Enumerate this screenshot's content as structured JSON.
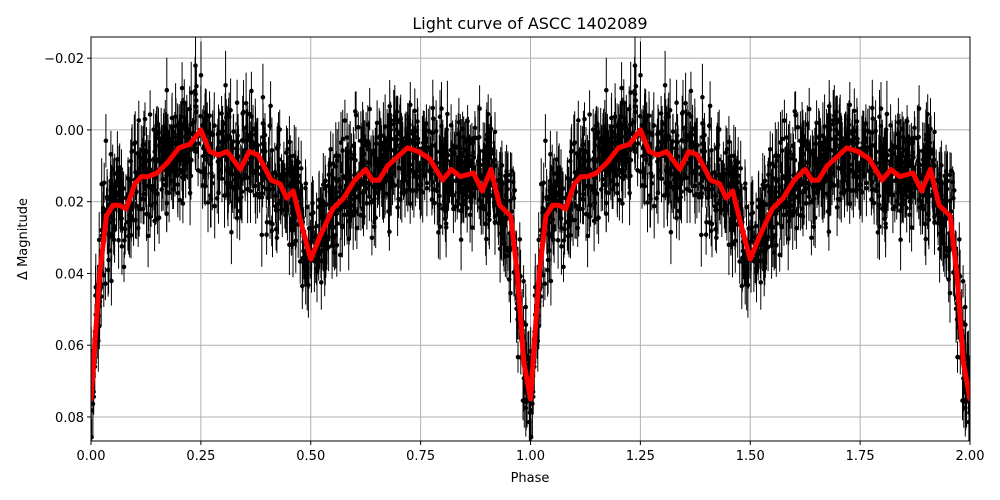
{
  "chart_data": {
    "type": "scatter",
    "title": "Light curve of ASCC 1402089",
    "xlabel": "Phase",
    "ylabel": "Δ Magnitude",
    "xlim": [
      0.0,
      2.0
    ],
    "ylim": [
      0.0867,
      -0.0259
    ],
    "y_inverted": true,
    "grid": true,
    "legend": null,
    "xticks": [
      "0.00",
      "0.25",
      "0.50",
      "0.75",
      "1.00",
      "1.25",
      "1.50",
      "1.75",
      "2.00"
    ],
    "xtick_values": [
      0.0,
      0.25,
      0.5,
      0.75,
      1.0,
      1.25,
      1.5,
      1.75,
      2.0
    ],
    "yticks": [
      "−0.02",
      "0.00",
      "0.02",
      "0.04",
      "0.06",
      "0.08"
    ],
    "ytick_values": [
      -0.02,
      0.0,
      0.02,
      0.04,
      0.06,
      0.08
    ],
    "period_repeated": true,
    "series": [
      {
        "name": "observations",
        "kind": "errorbar-scatter",
        "color": "#000000",
        "description": "Dense black points with vertical error bars, scatter of ~0.01-0.03 mag around the model",
        "typical_error": 0.006,
        "scatter_sigma": 0.011
      },
      {
        "name": "model",
        "kind": "line",
        "color": "#ff0000",
        "line_width": 5,
        "x": [
          0.0,
          0.02,
          0.035,
          0.05,
          0.065,
          0.08,
          0.1,
          0.115,
          0.13,
          0.15,
          0.175,
          0.2,
          0.225,
          0.25,
          0.27,
          0.29,
          0.31,
          0.34,
          0.36,
          0.38,
          0.41,
          0.43,
          0.445,
          0.46,
          0.48,
          0.5,
          0.52,
          0.55,
          0.575,
          0.6,
          0.625,
          0.64,
          0.655,
          0.675,
          0.72,
          0.745,
          0.77,
          0.8,
          0.82,
          0.84,
          0.87,
          0.89,
          0.91,
          0.93,
          0.955,
          0.97,
          0.985,
          1.0
        ],
        "y": [
          0.075,
          0.04,
          0.024,
          0.021,
          0.021,
          0.022,
          0.015,
          0.013,
          0.013,
          0.012,
          0.009,
          0.005,
          0.004,
          0.0,
          0.006,
          0.007,
          0.006,
          0.011,
          0.006,
          0.007,
          0.014,
          0.015,
          0.019,
          0.017,
          0.027,
          0.036,
          0.03,
          0.022,
          0.019,
          0.014,
          0.011,
          0.014,
          0.014,
          0.01,
          0.005,
          0.006,
          0.008,
          0.014,
          0.011,
          0.013,
          0.012,
          0.017,
          0.011,
          0.021,
          0.024,
          0.04,
          0.065,
          0.075
        ]
      }
    ]
  },
  "style": {
    "grid_color": "#b0b0b0",
    "axis_color": "#000000",
    "point_color": "#000000",
    "model_color": "#ff0000"
  }
}
